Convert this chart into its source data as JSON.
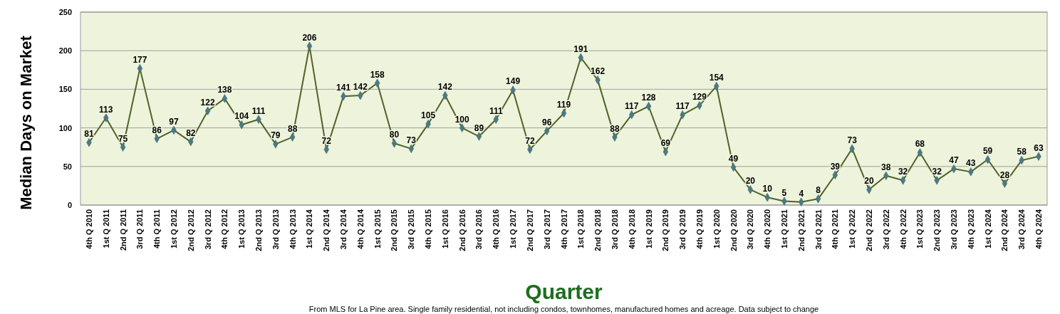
{
  "chart_data": {
    "type": "line",
    "xlabel": "Quarter",
    "ylabel": "Median Days on Market",
    "categories": [
      "4th Q 2010",
      "1st Q 2011",
      "2nd Q 2011",
      "3rd Q 2011",
      "4th Q 2011",
      "1st Q 2012",
      "2nd Q 2012",
      "3rd Q 2012",
      "4th Q 2012",
      "1st Q 2013",
      "2nd Q 2013",
      "3rd Q 2013",
      "4th Q 2013",
      "1st Q 2014",
      "2nd Q 2014",
      "3rd Q 2014",
      "4th Q 2014",
      "1st Q 2015",
      "2nd Q 2015",
      "3rd Q 2015",
      "4th Q 2015",
      "1st Q 2016",
      "2nd Q 2016",
      "3rd Q 2016",
      "4th Q 2016",
      "1st Q 2017",
      "2nd Q 2017",
      "3rd Q 2017",
      "4th Q 2017",
      "1st Q 2018",
      "2nd Q 2018",
      "3rd Q 2018",
      "4th Q 2018",
      "1st Q 2019",
      "2nd Q 2019",
      "3rd Q 2019",
      "4th Q 2019",
      "1st Q 2020",
      "2nd Q 2020",
      "3rd Q 2020",
      "4th Q 2020",
      "1st Q 2021",
      "2nd Q 2021",
      "3rd Q 2021",
      "4th Q 2021",
      "1st Q 2022",
      "2nd Q 2022",
      "3rd Q 2022",
      "4th Q 2022",
      "1st Q 2023",
      "2nd Q 2023",
      "3rd Q 2023",
      "4th Q 2023",
      "1st Q 2024",
      "2nd Q 2024",
      "3rd Q 2024",
      "4th Q 2024"
    ],
    "series": [
      {
        "color": "#4f6228",
        "values": [
          81,
          113,
          75,
          177,
          86,
          97,
          82,
          122,
          138,
          104,
          111,
          79,
          88,
          206,
          72,
          141,
          142,
          158,
          80,
          73,
          105,
          142,
          100,
          89,
          111,
          149,
          72,
          96,
          119,
          191,
          162,
          88,
          117,
          128,
          69,
          117,
          129,
          154,
          49,
          20,
          10,
          5,
          4,
          8,
          39,
          73,
          20,
          38,
          32,
          68,
          32,
          47,
          43,
          59,
          28,
          58,
          63
        ]
      }
    ],
    "ylim": [
      0,
      250
    ],
    "yticks": [
      0,
      50,
      100,
      150,
      200,
      250
    ],
    "grid": "y",
    "marker": "diamond",
    "line_style": "solid",
    "data_labels": true,
    "annotations": [
      "From MLS for La Pine area. Single family residential, not including condos, townhomes, manufactured homes and acreage.  Data subject to change"
    ]
  }
}
